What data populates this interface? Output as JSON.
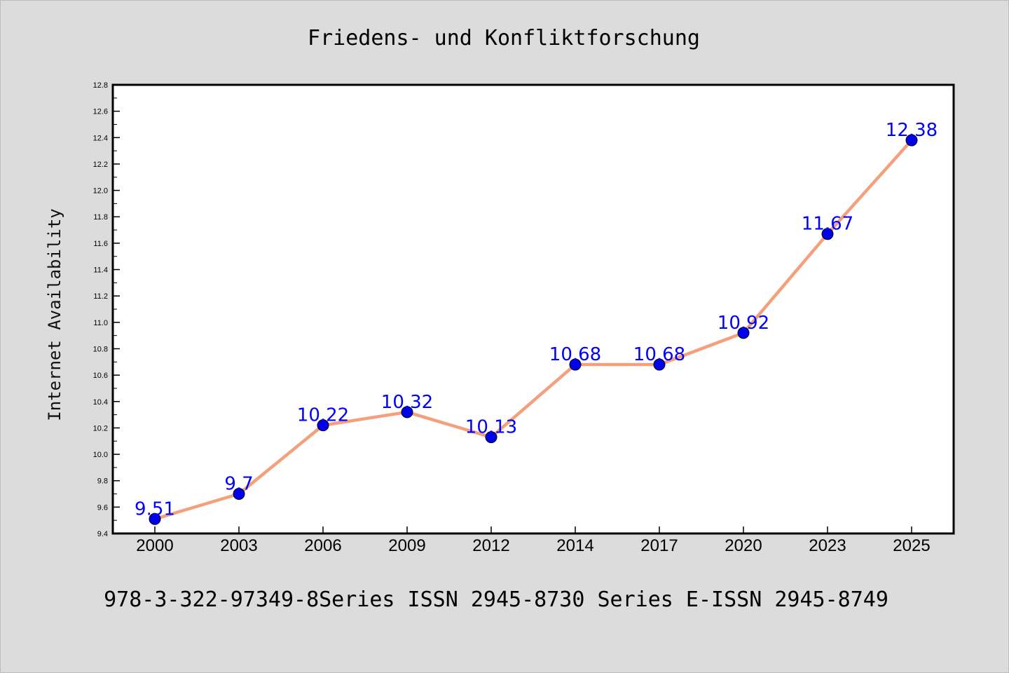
{
  "chart_data": {
    "type": "line",
    "title": "Friedens- und Konfliktforschung",
    "xlabel": "",
    "ylabel": "Internet Availability",
    "categories": [
      "2000",
      "2003",
      "2006",
      "2009",
      "2012",
      "2014",
      "2017",
      "2020",
      "2023",
      "2025"
    ],
    "series": [
      {
        "values": [
          9.51,
          9.7,
          10.22,
          10.32,
          10.13,
          10.68,
          10.68,
          10.92,
          11.67,
          12.38
        ],
        "value_labels": [
          "9.51",
          "9.7",
          "10.22",
          "10.32",
          "10.13",
          "10.68",
          "10.68",
          "10.92",
          "11.67",
          "12.38"
        ],
        "line_color": "#f4a07c",
        "marker_color": "#0000ee"
      }
    ],
    "ylim": [
      9.4,
      12.8
    ],
    "yticks": [
      "9.4",
      "9.6",
      "9.8",
      "10.0",
      "10.2",
      "10.4",
      "10.6",
      "10.8",
      "11.0",
      "11.2",
      "11.4",
      "11.6",
      "11.8",
      "12.0",
      "12.2",
      "12.4",
      "12.6",
      "12.8"
    ],
    "grid": false,
    "legend": "none",
    "footer": "978-3-322-97349-8Series ISSN 2945-8730 Series E-ISSN 2945-8749",
    "colors": {
      "background": "#dcdcdc",
      "plot_background": "#ffffff",
      "label_color": "#0000ff"
    }
  }
}
